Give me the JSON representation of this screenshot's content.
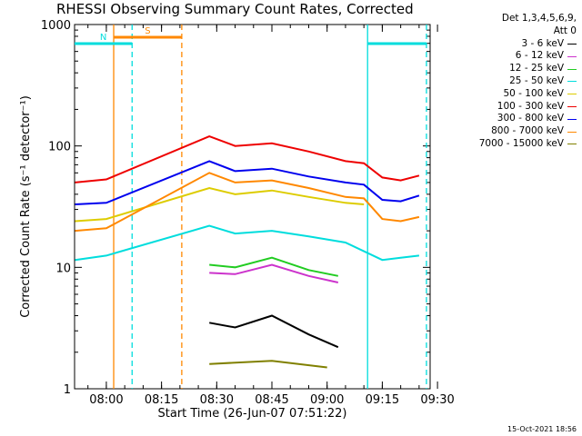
{
  "chart_data": {
    "type": "line",
    "title": "RHESSI Observing Summary Count Rates, Corrected",
    "xlabel": "Start Time (26-Jun-07 07:51:22)",
    "ylabel": "Corrected Count Rate (s⁻¹ detector⁻¹)",
    "yscale": "log",
    "ylim": [
      1,
      1000
    ],
    "xlim": [
      "07:51:22",
      "09:28:00"
    ],
    "x_ticks": [
      "08:00",
      "08:15",
      "08:30",
      "08:45",
      "09:00",
      "09:15",
      "09:30"
    ],
    "y_ticks": [
      "1",
      "10",
      "100",
      "1000"
    ],
    "grid": false,
    "legend_position": "top-right",
    "legend_header": [
      "Det 1,3,4,5,6,9,",
      "Att 0"
    ],
    "series": [
      {
        "name": "3 - 6 keV",
        "color": "#000000",
        "points": [
          [
            "08:28",
            3.5
          ],
          [
            "08:35",
            3.2
          ],
          [
            "08:45",
            4.0
          ],
          [
            "08:55",
            2.8
          ],
          [
            "09:03",
            2.2
          ]
        ]
      },
      {
        "name": "6 - 12 keV",
        "color": "#cc33cc",
        "points": [
          [
            "08:28",
            9.0
          ],
          [
            "08:35",
            8.8
          ],
          [
            "08:45",
            10.5
          ],
          [
            "08:55",
            8.5
          ],
          [
            "09:03",
            7.5
          ]
        ]
      },
      {
        "name": "12 - 25 keV",
        "color": "#22cc22",
        "points": [
          [
            "08:28",
            10.5
          ],
          [
            "08:35",
            10.0
          ],
          [
            "08:45",
            12.0
          ],
          [
            "08:55",
            9.5
          ],
          [
            "09:03",
            8.5
          ]
        ]
      },
      {
        "name": "25 - 50 keV",
        "color": "#00dddd",
        "points": [
          [
            "07:51:30",
            11.5
          ],
          [
            "08:00",
            12.5
          ],
          [
            "08:28",
            22
          ],
          [
            "08:35",
            19
          ],
          [
            "08:45",
            20
          ],
          [
            "08:55",
            18
          ],
          [
            "09:05",
            16
          ],
          [
            "09:15",
            11.5
          ],
          [
            "09:20",
            12
          ],
          [
            "09:25",
            12.5
          ]
        ]
      },
      {
        "name": "50 - 100 keV",
        "color": "#ddcc00",
        "points": [
          [
            "07:51:30",
            24
          ],
          [
            "08:00",
            25
          ],
          [
            "08:28",
            45
          ],
          [
            "08:35",
            40
          ],
          [
            "08:45",
            43
          ],
          [
            "08:55",
            38
          ],
          [
            "09:05",
            34
          ],
          [
            "09:10",
            33
          ]
        ]
      },
      {
        "name": "100 - 300 keV",
        "color": "#ee0000",
        "points": [
          [
            "07:51:30",
            50
          ],
          [
            "08:00",
            53
          ],
          [
            "08:28",
            120
          ],
          [
            "08:35",
            100
          ],
          [
            "08:45",
            105
          ],
          [
            "08:55",
            90
          ],
          [
            "09:05",
            75
          ],
          [
            "09:10",
            72
          ],
          [
            "09:15",
            55
          ],
          [
            "09:20",
            52
          ],
          [
            "09:25",
            57
          ]
        ]
      },
      {
        "name": "300 - 800 keV",
        "color": "#0000ee",
        "points": [
          [
            "07:51:30",
            33
          ],
          [
            "08:00",
            34
          ],
          [
            "08:28",
            75
          ],
          [
            "08:35",
            62
          ],
          [
            "08:45",
            65
          ],
          [
            "08:55",
            56
          ],
          [
            "09:05",
            50
          ],
          [
            "09:10",
            48
          ],
          [
            "09:15",
            36
          ],
          [
            "09:20",
            35
          ],
          [
            "09:25",
            39
          ]
        ]
      },
      {
        "name": "800 - 7000 keV",
        "color": "#ff8800",
        "points": [
          [
            "07:51:30",
            20
          ],
          [
            "08:00",
            21
          ],
          [
            "08:28",
            60
          ],
          [
            "08:35",
            50
          ],
          [
            "08:45",
            52
          ],
          [
            "08:55",
            45
          ],
          [
            "09:05",
            38
          ],
          [
            "09:10",
            37
          ],
          [
            "09:15",
            25
          ],
          [
            "09:20",
            24
          ],
          [
            "09:25",
            26
          ]
        ]
      },
      {
        "name": "7000 - 15000 keV",
        "color": "#808000",
        "points": [
          [
            "08:28",
            1.6
          ],
          [
            "08:45",
            1.7
          ],
          [
            "09:00",
            1.5
          ]
        ]
      }
    ],
    "flag_bars": [
      {
        "label": "S",
        "color": "#ff8800",
        "start": "08:02",
        "end": "08:20:30"
      },
      {
        "label": "N",
        "color": "#00dddd",
        "start": "07:51:22",
        "end": "08:07"
      },
      {
        "label": "",
        "color": "#00dddd",
        "start": "09:11",
        "end": "09:27"
      }
    ],
    "vertical_markers": [
      {
        "time": "08:02",
        "color": "#ff8800",
        "style": "solid"
      },
      {
        "time": "08:20:30",
        "color": "#ff8800",
        "style": "dashed"
      },
      {
        "time": "08:07",
        "color": "#00dddd",
        "style": "dashed"
      },
      {
        "time": "09:11",
        "color": "#00dddd",
        "style": "solid"
      },
      {
        "time": "09:27",
        "color": "#00dddd",
        "style": "dashed"
      }
    ]
  },
  "footer": {
    "date": "15-Oct-2021 18:56"
  }
}
